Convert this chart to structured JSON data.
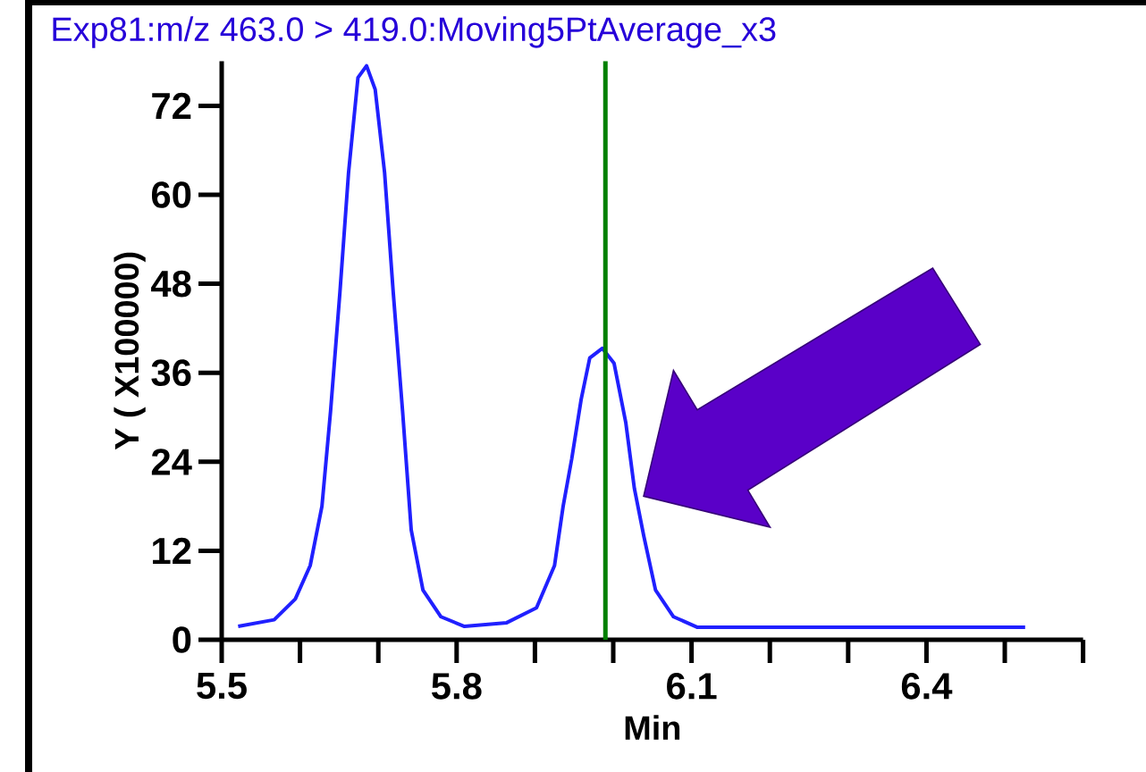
{
  "chart_data": {
    "type": "line",
    "title": "Exp81:m/z 463.0 > 419.0:Moving5PtAverage_x3",
    "xlabel": "Min",
    "ylabel": "Y ( X100000)",
    "xlim": [
      5.5,
      6.6
    ],
    "ylim": [
      0,
      78
    ],
    "xticks": [
      {
        "value": 5.5,
        "label": "5.5"
      },
      {
        "value": 5.6,
        "label": null
      },
      {
        "value": 5.7,
        "label": null
      },
      {
        "value": 5.8,
        "label": "5.8"
      },
      {
        "value": 5.9,
        "label": null
      },
      {
        "value": 6.0,
        "label": null
      },
      {
        "value": 6.1,
        "label": "6.1"
      },
      {
        "value": 6.2,
        "label": null
      },
      {
        "value": 6.3,
        "label": null
      },
      {
        "value": 6.4,
        "label": "6.4"
      },
      {
        "value": 6.5,
        "label": null
      },
      {
        "value": 6.6,
        "label": null
      }
    ],
    "yticks": [
      0,
      12,
      24,
      36,
      48,
      60,
      72
    ],
    "marker": "none",
    "line_style": "solid",
    "series": [
      {
        "color": "#2020ff",
        "x": [
          5.521,
          5.567,
          5.594,
          5.613,
          5.628,
          5.639,
          5.651,
          5.662,
          5.674,
          5.685,
          5.696,
          5.708,
          5.719,
          5.731,
          5.742,
          5.757,
          5.78,
          5.81,
          5.864,
          5.902,
          5.925,
          5.936,
          5.947,
          5.959,
          5.97,
          5.986,
          6.001,
          6.016,
          6.027,
          6.039,
          6.054,
          6.077,
          6.107,
          6.526
        ],
        "values": [
          1.8,
          2.7,
          5.5,
          10,
          18,
          30.8,
          46.9,
          63,
          75.8,
          77.4,
          74.2,
          63,
          46.9,
          30.8,
          14.8,
          6.7,
          3.1,
          1.8,
          2.3,
          4.3,
          10,
          18,
          24.4,
          32.4,
          38,
          39.3,
          37.3,
          29.3,
          20.4,
          14,
          6.7,
          3.1,
          1.7,
          1.7
        ]
      }
    ],
    "ref_lines": [
      {
        "axis": "x",
        "value": 5.99,
        "color": "#008000"
      }
    ]
  }
}
